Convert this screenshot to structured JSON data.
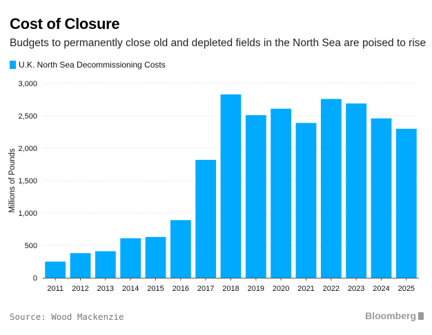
{
  "header": {
    "title": "Cost of Closure",
    "subtitle": "Budgets to permanently close old and depleted fields in the North Sea are poised to rise"
  },
  "legend": {
    "label": "U.K. North Sea Decommissioning Costs"
  },
  "footer": {
    "source": "Source: Wood Mackenzie",
    "brand": "Bloomberg"
  },
  "colors": {
    "bar": "#00aaff",
    "grid": "#d8d8d8",
    "axis": "#555555"
  },
  "chart_data": {
    "type": "bar",
    "title": "Cost of Closure",
    "subtitle": "Budgets to permanently close old and depleted fields in the North Sea are poised to rise",
    "categories": [
      "2011",
      "2012",
      "2013",
      "2014",
      "2015",
      "2016",
      "2017",
      "2018",
      "2019",
      "2020",
      "2021",
      "2022",
      "2023",
      "2024",
      "2025"
    ],
    "series": [
      {
        "name": "U.K. North Sea Decommissioning Costs",
        "values": [
          250,
          380,
          410,
          610,
          630,
          890,
          1820,
          2830,
          2510,
          2610,
          2390,
          2760,
          2690,
          2460,
          2300
        ]
      }
    ],
    "xlabel": "",
    "ylabel": "Millions of Pounds",
    "ylim": [
      0,
      3000
    ],
    "yticks": [
      0,
      500,
      1000,
      1500,
      2000,
      2500,
      3000
    ],
    "ytick_labels": [
      "0",
      "500",
      "1,000",
      "1,500",
      "2,000",
      "2,500",
      "3,000"
    ],
    "grid": "horizontal dotted",
    "legend_position": "top-left"
  }
}
